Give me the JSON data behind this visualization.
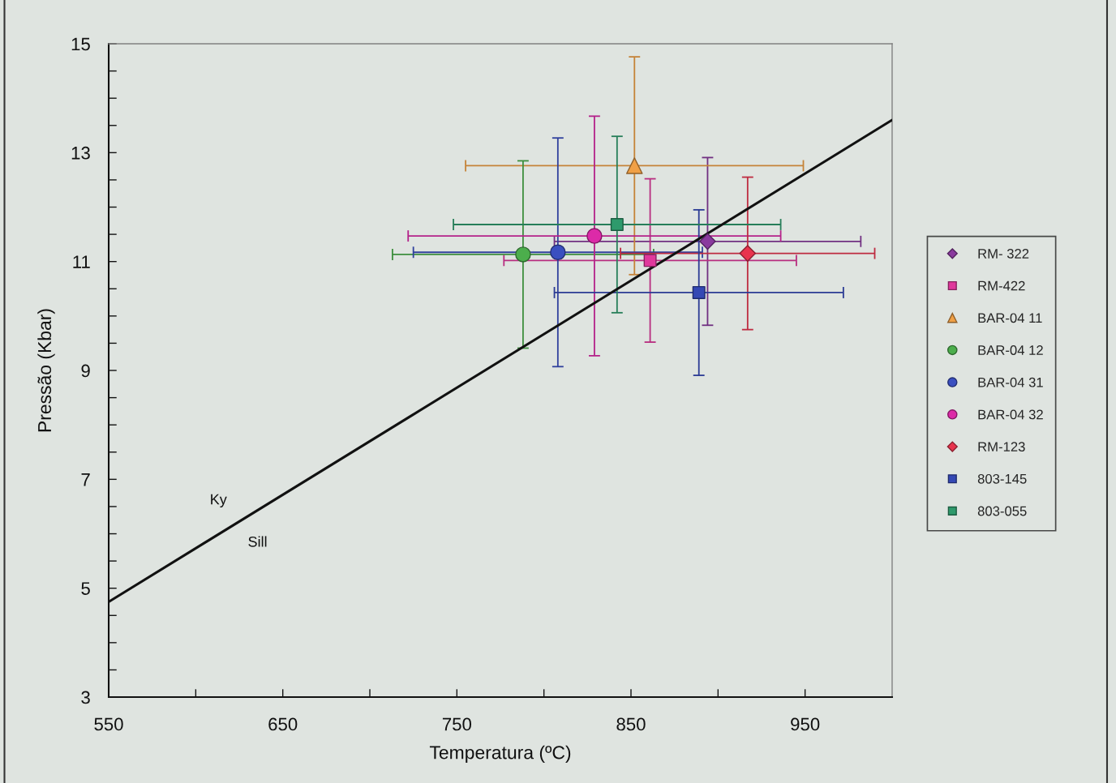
{
  "chart_data": {
    "type": "scatter",
    "xlabel": "Temperatura (ºC)",
    "ylabel": "Pressão (Kbar)",
    "xlim": [
      550,
      1000
    ],
    "ylim": [
      3,
      15
    ],
    "xticks": [
      550,
      {
        "value": 600,
        "label": null
      },
      650,
      {
        "value": 700,
        "label": null
      },
      750,
      {
        "value": 800,
        "label": null
      },
      850,
      {
        "value": 900,
        "label": null
      },
      950
    ],
    "yticks": [
      3,
      {
        "value": 3.5,
        "label": null
      },
      {
        "value": 4,
        "label": null
      },
      {
        "value": 4.5,
        "label": null
      },
      5,
      {
        "value": 5.5,
        "label": null
      },
      {
        "value": 6,
        "label": null
      },
      {
        "value": 6.5,
        "label": null
      },
      7,
      {
        "value": 7.5,
        "label": null
      },
      {
        "value": 8,
        "label": null
      },
      {
        "value": 8.5,
        "label": null
      },
      9,
      {
        "value": 9.5,
        "label": null
      },
      {
        "value": 10,
        "label": null
      },
      {
        "value": 10.5,
        "label": null
      },
      11,
      {
        "value": 11.5,
        "label": null
      },
      {
        "value": 12,
        "label": null
      },
      {
        "value": 12.5,
        "label": null
      },
      13,
      {
        "value": 13.5,
        "label": null
      },
      {
        "value": 14,
        "label": null
      },
      {
        "value": 14.5,
        "label": null
      },
      15
    ],
    "legend": "right",
    "series": [
      {
        "name": "RM- 322",
        "marker": "diamond",
        "color": "#8a3a9e",
        "x": [
          894
        ],
        "values": [
          11.37
        ],
        "errors": [
          1.54
        ],
        "xerrors": [
          88
        ]
      },
      {
        "name": "RM-422",
        "marker": "square",
        "color": "#e0389c",
        "x": [
          861
        ],
        "values": [
          11.02
        ],
        "errors": [
          1.5
        ],
        "xerrors": [
          84
        ]
      },
      {
        "name": "BAR-04 11",
        "marker": "triangle",
        "color": "#f0a046",
        "x": [
          852
        ],
        "values": [
          12.76
        ],
        "errors": [
          2.0
        ],
        "xerrors": [
          97
        ]
      },
      {
        "name": "BAR-04 12",
        "marker": "circle",
        "color": "#4cae4c",
        "x": [
          788
        ],
        "values": [
          11.13
        ],
        "errors": [
          1.72
        ],
        "xerrors": [
          75
        ]
      },
      {
        "name": "BAR-04 31",
        "marker": "circle",
        "color": "#3a4fc0",
        "x": [
          808
        ],
        "values": [
          11.17
        ],
        "errors": [
          2.1
        ],
        "xerrors": [
          83
        ]
      },
      {
        "name": "BAR-04 32",
        "marker": "circle",
        "color": "#dc2aa8",
        "x": [
          829
        ],
        "values": [
          11.47
        ],
        "errors": [
          2.2
        ],
        "xerrors": [
          107
        ]
      },
      {
        "name": "RM-123",
        "marker": "diamond",
        "color": "#e8344e",
        "x": [
          917
        ],
        "values": [
          11.15
        ],
        "errors": [
          1.4
        ],
        "xerrors": [
          73
        ]
      },
      {
        "name": "803-145",
        "marker": "square",
        "color": "#3448b4",
        "x": [
          889
        ],
        "values": [
          10.43
        ],
        "errors": [
          1.52
        ],
        "xerrors": [
          83
        ]
      },
      {
        "name": "803-055",
        "marker": "square",
        "color": "#2e9a6c",
        "x": [
          842
        ],
        "values": [
          11.68
        ],
        "errors": [
          1.62
        ],
        "xerrors": [
          94
        ]
      },
      {
        "type": "line",
        "color": "#111111",
        "x": [
          550,
          1000
        ],
        "values": [
          4.75,
          13.6
        ]
      }
    ],
    "annotations": [
      "Ky",
      "Sill"
    ]
  }
}
